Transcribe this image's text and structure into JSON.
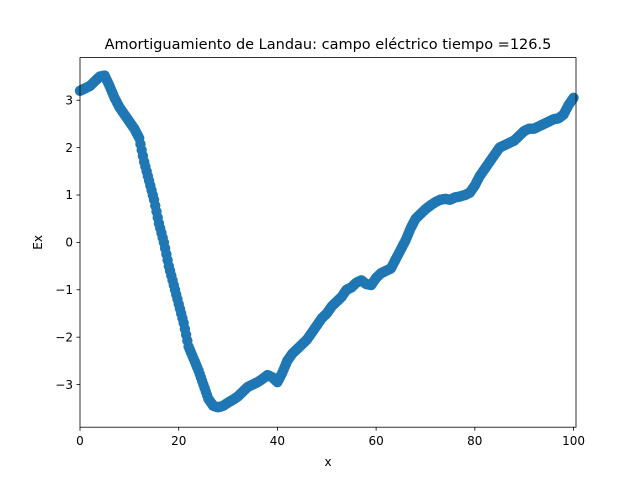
{
  "chart_data": {
    "type": "scatter",
    "title": "Amortiguamiento de Landau: campo eléctrico  tiempo =126.5",
    "xlabel": "x",
    "ylabel": "Ex",
    "xlim": [
      0,
      100.5
    ],
    "ylim": [
      -3.9,
      3.9
    ],
    "xticks": [
      0,
      20,
      40,
      60,
      80,
      100
    ],
    "yticks": [
      -3,
      -2,
      -1,
      0,
      1,
      2,
      3
    ],
    "xtick_labels": [
      "0",
      "20",
      "40",
      "60",
      "80",
      "100"
    ],
    "ytick_labels": [
      "−3",
      "−2",
      "−1",
      "0",
      "1",
      "2",
      "3"
    ],
    "grid": false,
    "marker_color": "#1f77b4",
    "series": [
      {
        "points": [
          [
            0,
            3.2
          ],
          [
            1,
            3.25
          ],
          [
            2,
            3.3
          ],
          [
            3,
            3.4
          ],
          [
            4,
            3.5
          ],
          [
            5,
            3.52
          ],
          [
            6,
            3.3
          ],
          [
            7,
            3.05
          ],
          [
            8,
            2.85
          ],
          [
            9,
            2.7
          ],
          [
            10,
            2.55
          ],
          [
            11,
            2.4
          ],
          [
            12,
            2.2
          ],
          [
            13,
            1.7
          ],
          [
            14,
            1.3
          ],
          [
            15,
            0.9
          ],
          [
            16,
            0.4
          ],
          [
            17,
            0.0
          ],
          [
            18,
            -0.5
          ],
          [
            19,
            -0.9
          ],
          [
            20,
            -1.3
          ],
          [
            21,
            -1.7
          ],
          [
            22,
            -2.2
          ],
          [
            23,
            -2.45
          ],
          [
            24,
            -2.7
          ],
          [
            25,
            -3.0
          ],
          [
            26,
            -3.3
          ],
          [
            27,
            -3.45
          ],
          [
            28,
            -3.48
          ],
          [
            29,
            -3.45
          ],
          [
            30,
            -3.38
          ],
          [
            31,
            -3.32
          ],
          [
            32,
            -3.25
          ],
          [
            33,
            -3.15
          ],
          [
            34,
            -3.05
          ],
          [
            35,
            -3.0
          ],
          [
            36,
            -2.95
          ],
          [
            37,
            -2.88
          ],
          [
            38,
            -2.8
          ],
          [
            39,
            -2.85
          ],
          [
            40,
            -2.95
          ],
          [
            41,
            -2.75
          ],
          [
            42,
            -2.5
          ],
          [
            43,
            -2.35
          ],
          [
            44,
            -2.25
          ],
          [
            45,
            -2.15
          ],
          [
            46,
            -2.05
          ],
          [
            47,
            -1.9
          ],
          [
            48,
            -1.75
          ],
          [
            49,
            -1.6
          ],
          [
            50,
            -1.5
          ],
          [
            51,
            -1.35
          ],
          [
            52,
            -1.25
          ],
          [
            53,
            -1.15
          ],
          [
            54,
            -1.0
          ],
          [
            55,
            -0.95
          ],
          [
            56,
            -0.85
          ],
          [
            57,
            -0.8
          ],
          [
            58,
            -0.88
          ],
          [
            59,
            -0.9
          ],
          [
            60,
            -0.75
          ],
          [
            61,
            -0.65
          ],
          [
            62,
            -0.6
          ],
          [
            63,
            -0.55
          ],
          [
            64,
            -0.35
          ],
          [
            65,
            -0.15
          ],
          [
            66,
            0.05
          ],
          [
            67,
            0.3
          ],
          [
            68,
            0.5
          ],
          [
            69,
            0.6
          ],
          [
            70,
            0.7
          ],
          [
            71,
            0.78
          ],
          [
            72,
            0.85
          ],
          [
            73,
            0.9
          ],
          [
            74,
            0.92
          ],
          [
            75,
            0.9
          ],
          [
            76,
            0.95
          ],
          [
            77,
            0.97
          ],
          [
            78,
            1.0
          ],
          [
            79,
            1.05
          ],
          [
            80,
            1.2
          ],
          [
            81,
            1.4
          ],
          [
            82,
            1.55
          ],
          [
            83,
            1.7
          ],
          [
            84,
            1.85
          ],
          [
            85,
            2.0
          ],
          [
            86,
            2.05
          ],
          [
            87,
            2.1
          ],
          [
            88,
            2.15
          ],
          [
            89,
            2.25
          ],
          [
            90,
            2.35
          ],
          [
            91,
            2.4
          ],
          [
            92,
            2.4
          ],
          [
            93,
            2.45
          ],
          [
            94,
            2.5
          ],
          [
            95,
            2.55
          ],
          [
            96,
            2.6
          ],
          [
            97,
            2.62
          ],
          [
            98,
            2.7
          ],
          [
            99,
            2.9
          ],
          [
            100,
            3.05
          ]
        ]
      }
    ]
  }
}
